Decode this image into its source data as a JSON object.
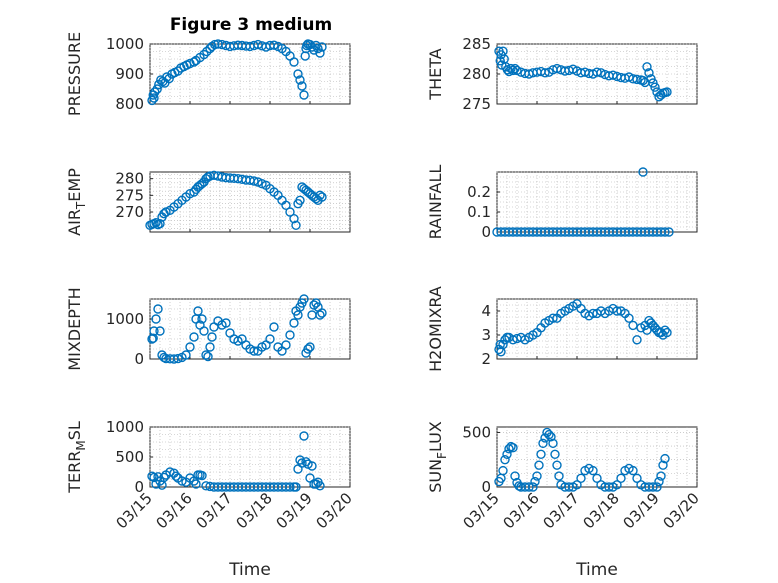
{
  "figure_title": "Figure 3 medium",
  "chart_data": [
    {
      "type": "scatter",
      "ylabel": "PRESSURE",
      "xlabel": "",
      "xlim": [
        15,
        20
      ],
      "ylim": [
        800,
        1000
      ],
      "yticks": [
        800,
        900,
        1000
      ],
      "yticklabels": [
        "800",
        "900",
        "1000"
      ],
      "xticklabels": [],
      "x": [
        15.05,
        15.08,
        15.1,
        15.12,
        15.18,
        15.22,
        15.27,
        15.32,
        15.37,
        15.42,
        15.48,
        15.55,
        15.62,
        15.7,
        15.77,
        15.85,
        15.92,
        16.0,
        16.1,
        16.15,
        16.25,
        16.35,
        16.42,
        16.5,
        16.55,
        16.62,
        16.7,
        16.8,
        16.9,
        17.0,
        17.1,
        17.2,
        17.3,
        17.4,
        17.5,
        17.6,
        17.7,
        17.8,
        17.9,
        18.0,
        18.1,
        18.2,
        18.3,
        18.4,
        18.5,
        18.6,
        18.7,
        18.75,
        18.8,
        18.85,
        18.88,
        18.9,
        18.92,
        18.95,
        19.0,
        19.05,
        19.1,
        19.15,
        19.2,
        19.25,
        19.3
      ],
      "y": [
        812,
        830,
        820,
        840,
        850,
        865,
        880,
        875,
        870,
        890,
        885,
        900,
        905,
        910,
        920,
        925,
        930,
        935,
        940,
        945,
        955,
        965,
        975,
        985,
        992,
        998,
        1000,
        998,
        995,
        992,
        994,
        996,
        995,
        993,
        992,
        995,
        998,
        994,
        990,
        995,
        996,
        992,
        985,
        975,
        960,
        940,
        900,
        880,
        860,
        830,
        960,
        985,
        995,
        1000,
        998,
        990,
        980,
        995,
        985,
        970,
        990
      ]
    },
    {
      "type": "scatter",
      "ylabel": "THETA",
      "xlabel": "",
      "xlim": [
        15,
        20
      ],
      "ylim": [
        275,
        285
      ],
      "yticks": [
        275,
        280,
        285
      ],
      "yticklabels": [
        "275",
        "280",
        "285"
      ],
      "xticklabels": [],
      "x": [
        15.05,
        15.08,
        15.1,
        15.12,
        15.15,
        15.18,
        15.22,
        15.26,
        15.3,
        15.35,
        15.4,
        15.45,
        15.5,
        15.6,
        15.7,
        15.8,
        15.9,
        16.0,
        16.1,
        16.2,
        16.3,
        16.4,
        16.5,
        16.6,
        16.7,
        16.8,
        16.9,
        17.0,
        17.1,
        17.2,
        17.3,
        17.4,
        17.5,
        17.6,
        17.7,
        17.8,
        17.9,
        18.0,
        18.1,
        18.2,
        18.3,
        18.4,
        18.5,
        18.6,
        18.65,
        18.7,
        18.75,
        18.8,
        18.85,
        18.9,
        18.95,
        19.0,
        19.05,
        19.1,
        19.15,
        19.2,
        19.25
      ],
      "y": [
        283.8,
        282.2,
        283.2,
        281.5,
        283.8,
        282.5,
        281.2,
        280.7,
        280.4,
        280.9,
        280.6,
        280.9,
        280.6,
        280.3,
        280.1,
        280.0,
        280.2,
        280.3,
        280.4,
        280.2,
        280.3,
        280.7,
        280.9,
        280.7,
        280.5,
        280.6,
        280.8,
        280.5,
        280.2,
        280.3,
        280.1,
        280.0,
        280.3,
        280.2,
        279.9,
        279.7,
        279.8,
        279.6,
        279.4,
        279.3,
        279.5,
        279.2,
        279.1,
        279.0,
        278.9,
        278.6,
        281.2,
        280.2,
        279.2,
        278.5,
        277.8,
        277.0,
        276.2,
        276.5,
        276.8,
        276.9,
        277.0
      ]
    },
    {
      "type": "scatter",
      "ylabel": "AIR_TEMP",
      "xlabel": "",
      "xlim": [
        15,
        20
      ],
      "ylim": [
        264,
        282
      ],
      "yticks": [
        270,
        275,
        280
      ],
      "yticklabels": [
        "270",
        "275",
        "280"
      ],
      "xticklabels": [],
      "x": [
        15.0,
        15.05,
        15.1,
        15.15,
        15.2,
        15.25,
        15.3,
        15.35,
        15.4,
        15.5,
        15.6,
        15.7,
        15.8,
        15.9,
        16.0,
        16.1,
        16.15,
        16.2,
        16.25,
        16.3,
        16.35,
        16.4,
        16.45,
        16.5,
        16.6,
        16.7,
        16.8,
        16.9,
        17.0,
        17.1,
        17.2,
        17.3,
        17.4,
        17.5,
        17.6,
        17.7,
        17.8,
        17.9,
        18.0,
        18.1,
        18.2,
        18.3,
        18.4,
        18.5,
        18.6,
        18.65,
        18.7,
        18.75,
        18.8,
        18.85,
        18.9,
        18.95,
        19.0,
        19.05,
        19.1,
        19.15,
        19.2,
        19.25,
        19.3
      ],
      "y": [
        266.0,
        266.3,
        266.5,
        266.8,
        266.2,
        266.5,
        268.5,
        269.5,
        270.0,
        270.5,
        271.5,
        272.5,
        273.5,
        274.5,
        275.5,
        276.0,
        276.8,
        277.5,
        278.0,
        278.5,
        279.0,
        280.0,
        280.5,
        280.8,
        281.0,
        280.8,
        280.5,
        280.3,
        280.2,
        280.1,
        280.0,
        279.8,
        279.6,
        279.5,
        279.3,
        279.0,
        278.5,
        278.0,
        277.0,
        276.0,
        275.0,
        273.5,
        272.0,
        270.0,
        268.0,
        266.0,
        272.5,
        273.5,
        277.5,
        277.0,
        276.5,
        276.0,
        275.5,
        275.0,
        274.5,
        274.0,
        273.5,
        275.0,
        274.5
      ]
    },
    {
      "type": "scatter",
      "ylabel": "RAINFALL",
      "xlabel": "",
      "xlim": [
        15,
        20
      ],
      "ylim": [
        0,
        0.3
      ],
      "yticks": [
        0,
        0.1,
        0.2
      ],
      "yticklabels": [
        "0",
        "0.1",
        "0.2"
      ],
      "xticklabels": [],
      "x": [
        15.0,
        15.1,
        15.2,
        15.3,
        15.4,
        15.5,
        15.6,
        15.7,
        15.8,
        15.9,
        16.0,
        16.1,
        16.2,
        16.3,
        16.4,
        16.5,
        16.6,
        16.7,
        16.8,
        16.9,
        17.0,
        17.1,
        17.2,
        17.3,
        17.4,
        17.5,
        17.6,
        17.7,
        17.8,
        17.9,
        18.0,
        18.1,
        18.2,
        18.3,
        18.4,
        18.5,
        18.6,
        18.65,
        18.7,
        18.8,
        18.9,
        19.0,
        19.1,
        19.2,
        19.3
      ],
      "y": [
        0,
        0,
        0,
        0,
        0,
        0,
        0,
        0,
        0,
        0,
        0,
        0,
        0,
        0,
        0,
        0,
        0,
        0,
        0,
        0,
        0,
        0,
        0,
        0,
        0,
        0,
        0,
        0,
        0,
        0,
        0,
        0,
        0,
        0,
        0,
        0,
        0,
        0.3,
        0,
        0,
        0,
        0,
        0,
        0,
        0
      ]
    },
    {
      "type": "scatter",
      "ylabel": "MIXDEPTH",
      "xlabel": "",
      "xlim": [
        15,
        20
      ],
      "ylim": [
        0,
        1500
      ],
      "yticks": [
        0,
        1000
      ],
      "yticklabels": [
        "0",
        "1000"
      ],
      "xticklabels": [],
      "x": [
        15.05,
        15.08,
        15.1,
        15.15,
        15.2,
        15.25,
        15.3,
        15.35,
        15.4,
        15.5,
        15.6,
        15.7,
        15.8,
        15.9,
        16.0,
        16.1,
        16.15,
        16.2,
        16.25,
        16.3,
        16.35,
        16.4,
        16.45,
        16.5,
        16.55,
        16.6,
        16.7,
        16.8,
        16.9,
        17.0,
        17.1,
        17.2,
        17.3,
        17.4,
        17.5,
        17.6,
        17.7,
        17.8,
        17.9,
        18.0,
        18.1,
        18.2,
        18.3,
        18.4,
        18.5,
        18.6,
        18.65,
        18.7,
        18.75,
        18.8,
        18.85,
        18.9,
        18.95,
        19.0,
        19.05,
        19.1,
        19.15,
        19.2,
        19.25,
        19.3
      ],
      "y": [
        500,
        520,
        700,
        1000,
        1250,
        700,
        100,
        40,
        10,
        5,
        0,
        10,
        40,
        100,
        300,
        550,
        1000,
        1200,
        850,
        1000,
        700,
        100,
        60,
        300,
        550,
        800,
        950,
        850,
        900,
        650,
        500,
        450,
        500,
        350,
        250,
        200,
        200,
        300,
        350,
        500,
        800,
        300,
        200,
        350,
        600,
        900,
        1200,
        1100,
        1300,
        1400,
        1500,
        150,
        250,
        300,
        1100,
        1350,
        1400,
        1300,
        1100,
        1150
      ]
    },
    {
      "type": "scatter",
      "ylabel": "H2OMIXRA",
      "xlabel": "",
      "xlim": [
        15,
        20
      ],
      "ylim": [
        2,
        4.5
      ],
      "yticks": [
        2,
        3,
        4
      ],
      "yticklabels": [
        "2",
        "3",
        "4"
      ],
      "xticklabels": [],
      "x": [
        15.05,
        15.08,
        15.1,
        15.15,
        15.2,
        15.25,
        15.3,
        15.4,
        15.5,
        15.6,
        15.7,
        15.8,
        15.9,
        16.0,
        16.1,
        16.2,
        16.3,
        16.4,
        16.5,
        16.6,
        16.7,
        16.8,
        16.9,
        17.0,
        17.1,
        17.2,
        17.3,
        17.4,
        17.5,
        17.6,
        17.7,
        17.8,
        17.9,
        18.0,
        18.1,
        18.2,
        18.3,
        18.4,
        18.5,
        18.6,
        18.7,
        18.75,
        18.8,
        18.85,
        18.9,
        18.95,
        19.0,
        19.05,
        19.1,
        19.15,
        19.2,
        19.25
      ],
      "y": [
        2.4,
        2.6,
        2.3,
        2.6,
        2.8,
        2.9,
        2.9,
        2.8,
        2.85,
        2.9,
        2.8,
        2.9,
        3.0,
        3.1,
        3.3,
        3.5,
        3.6,
        3.7,
        3.7,
        3.9,
        4.0,
        4.1,
        4.2,
        4.3,
        4.1,
        3.9,
        3.8,
        3.9,
        3.9,
        4.0,
        3.9,
        4.0,
        4.1,
        4.0,
        4.0,
        3.9,
        3.7,
        3.4,
        2.8,
        3.3,
        3.4,
        3.2,
        3.6,
        3.5,
        3.4,
        3.3,
        3.2,
        3.1,
        3.1,
        3.0,
        3.2,
        3.1
      ]
    },
    {
      "type": "scatter",
      "ylabel": "TERR_MSL",
      "xlabel": "Time",
      "xlim": [
        15,
        20
      ],
      "ylim": [
        0,
        1000
      ],
      "yticks": [
        0,
        500,
        1000
      ],
      "yticklabels": [
        "0",
        "500",
        "1000"
      ],
      "xticks": [
        15,
        16,
        17,
        18,
        19,
        20
      ],
      "xticklabels": [
        "03/15",
        "03/16",
        "03/17",
        "03/18",
        "03/19",
        "03/20"
      ],
      "x": [
        15.05,
        15.1,
        15.15,
        15.2,
        15.25,
        15.3,
        15.35,
        15.4,
        15.5,
        15.6,
        15.65,
        15.7,
        15.8,
        15.9,
        16.0,
        16.1,
        16.15,
        16.2,
        16.25,
        16.3,
        16.4,
        16.5,
        16.6,
        16.7,
        16.8,
        16.9,
        17.0,
        17.1,
        17.2,
        17.3,
        17.4,
        17.5,
        17.6,
        17.7,
        17.8,
        17.9,
        18.0,
        18.1,
        18.2,
        18.3,
        18.4,
        18.5,
        18.6,
        18.65,
        18.7,
        18.75,
        18.8,
        18.85,
        18.9,
        18.95,
        19.0,
        19.05,
        19.1,
        19.15,
        19.2,
        19.25
      ],
      "y": [
        180,
        160,
        50,
        170,
        100,
        30,
        160,
        200,
        250,
        230,
        180,
        150,
        100,
        80,
        150,
        100,
        50,
        200,
        200,
        190,
        20,
        10,
        0,
        0,
        0,
        0,
        0,
        0,
        0,
        0,
        0,
        0,
        0,
        0,
        0,
        0,
        0,
        0,
        0,
        0,
        0,
        0,
        0,
        0,
        300,
        450,
        400,
        850,
        420,
        380,
        150,
        350,
        50,
        50,
        80,
        20
      ]
    },
    {
      "type": "scatter",
      "ylabel": "SUN_FLUX",
      "xlabel": "Time",
      "xlim": [
        15,
        20
      ],
      "ylim": [
        0,
        550
      ],
      "yticks": [
        0,
        500
      ],
      "yticklabels": [
        "0",
        "500"
      ],
      "xticks": [
        15,
        16,
        17,
        18,
        19,
        20
      ],
      "xticklabels": [
        "03/15",
        "03/16",
        "03/17",
        "03/18",
        "03/19",
        "03/20"
      ],
      "x": [
        15.05,
        15.1,
        15.15,
        15.2,
        15.25,
        15.3,
        15.35,
        15.4,
        15.45,
        15.5,
        15.55,
        15.6,
        15.7,
        15.8,
        15.9,
        15.95,
        16.0,
        16.05,
        16.1,
        16.15,
        16.2,
        16.25,
        16.3,
        16.35,
        16.4,
        16.45,
        16.5,
        16.55,
        16.6,
        16.7,
        16.8,
        16.9,
        17.0,
        17.1,
        17.2,
        17.3,
        17.4,
        17.5,
        17.6,
        17.7,
        17.8,
        17.9,
        18.0,
        18.1,
        18.2,
        18.3,
        18.4,
        18.5,
        18.6,
        18.7,
        18.8,
        18.9,
        19.0,
        19.05,
        19.1,
        19.15,
        19.2
      ],
      "y": [
        50,
        80,
        150,
        250,
        300,
        350,
        370,
        360,
        100,
        40,
        10,
        0,
        0,
        0,
        0,
        50,
        100,
        200,
        300,
        400,
        450,
        500,
        480,
        460,
        400,
        300,
        200,
        100,
        20,
        0,
        0,
        0,
        20,
        80,
        150,
        170,
        150,
        80,
        20,
        0,
        0,
        0,
        20,
        80,
        150,
        170,
        150,
        80,
        20,
        0,
        0,
        0,
        0,
        50,
        100,
        200,
        260
      ]
    }
  ]
}
